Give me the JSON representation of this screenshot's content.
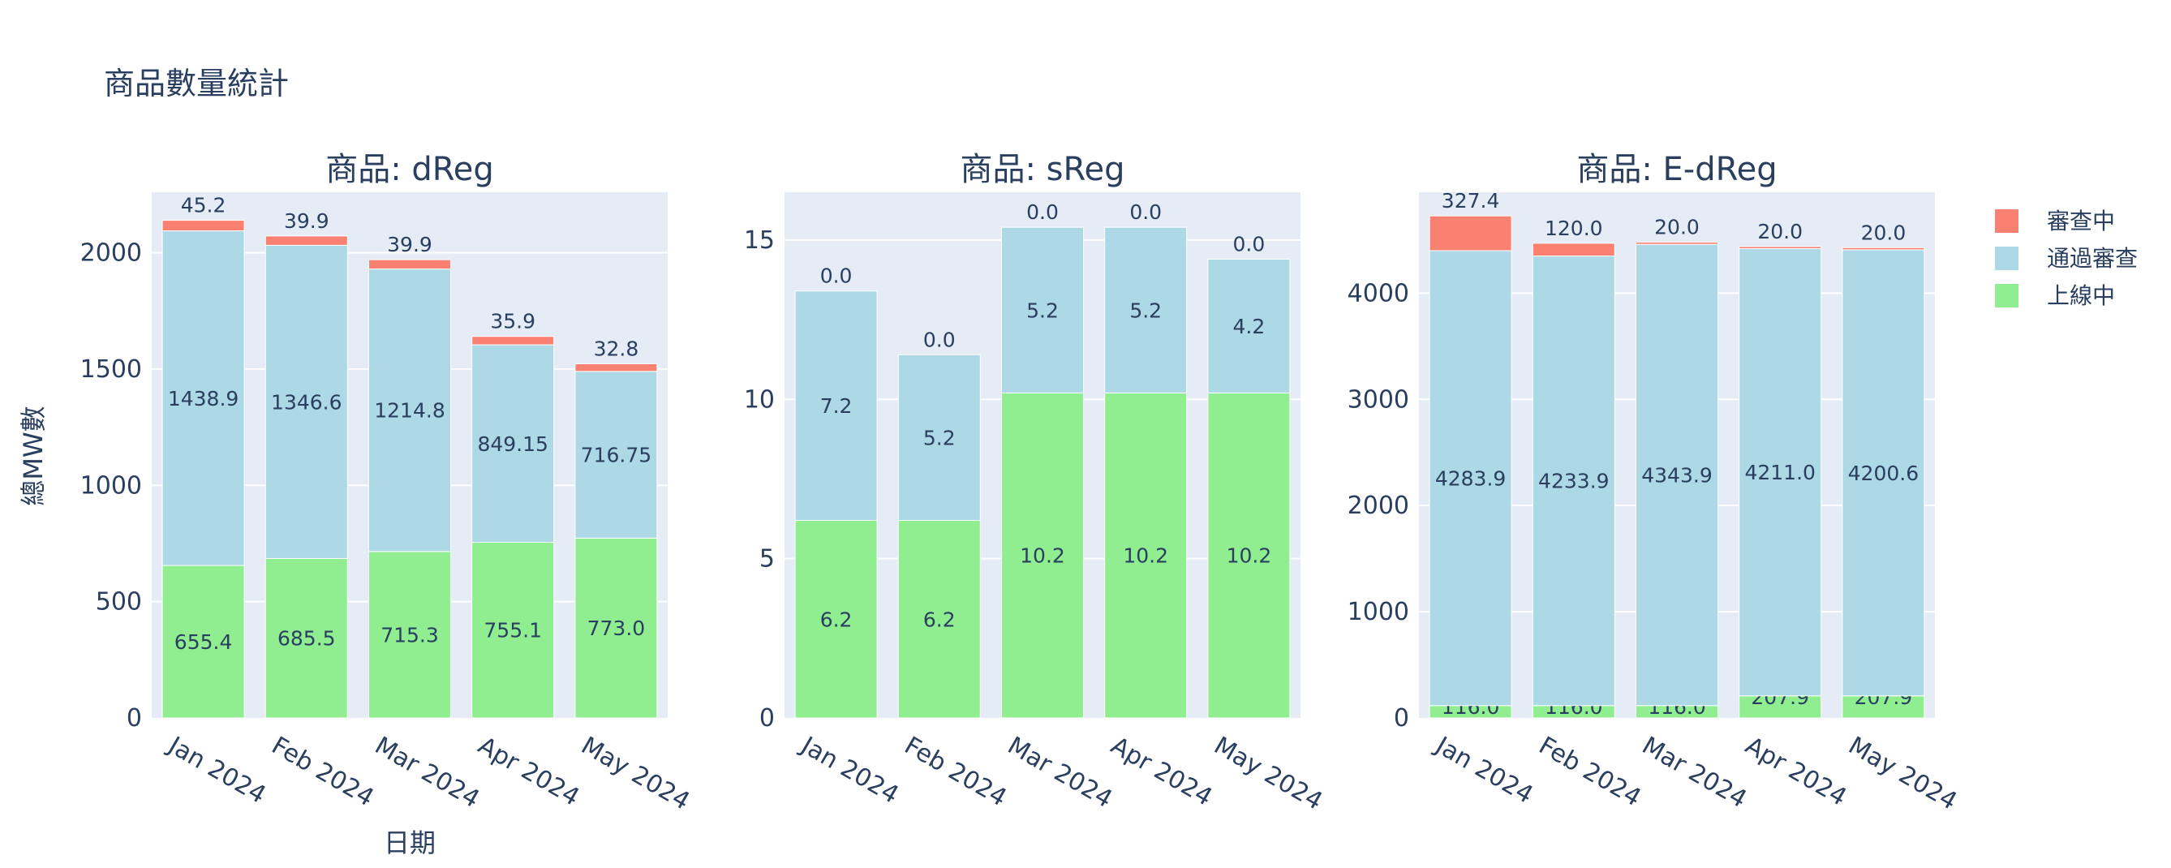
{
  "chart_data": {
    "type": "bar",
    "stacked": true,
    "title": "商品數量統計",
    "xlabel": "日期",
    "ylabel": "總MW數",
    "categories": [
      "Jan 2024",
      "Feb 2024",
      "Mar 2024",
      "Apr 2024",
      "May 2024"
    ],
    "legend": {
      "placement": "right",
      "items": [
        {
          "name": "審查中",
          "color": "#fa8072"
        },
        {
          "name": "通過審查",
          "color": "#add8e6"
        },
        {
          "name": "上線中",
          "color": "#90ee90"
        }
      ]
    },
    "panels": [
      {
        "title": "商品: dReg",
        "ylim": [
          0,
          2260
        ],
        "yticks": [
          0,
          500,
          1000,
          1500,
          2000
        ],
        "series": [
          {
            "name": "上線中",
            "color": "#90ee90",
            "values": [
              655.4,
              685.5,
              715.3,
              755.1,
              773.0
            ],
            "labels": [
              "655.4",
              "685.5",
              "715.3",
              "755.1",
              "773.0"
            ]
          },
          {
            "name": "通過審查",
            "color": "#add8e6",
            "values": [
              1438.9,
              1346.6,
              1214.8,
              849.15,
              716.75
            ],
            "labels": [
              "1438.9",
              "1346.6",
              "1214.8",
              "849.15",
              "716.75"
            ]
          },
          {
            "name": "審查中",
            "color": "#fa8072",
            "values": [
              45.2,
              39.9,
              39.9,
              35.9,
              32.8
            ],
            "labels": [
              "45.2",
              "39.9",
              "39.9",
              "35.9",
              "32.8"
            ]
          }
        ]
      },
      {
        "title": "商品: sReg",
        "ylim": [
          0,
          16.5
        ],
        "yticks": [
          0,
          5,
          10,
          15
        ],
        "series": [
          {
            "name": "上線中",
            "color": "#90ee90",
            "values": [
              6.2,
              6.2,
              10.2,
              10.2,
              10.2
            ],
            "labels": [
              "6.2",
              "6.2",
              "10.2",
              "10.2",
              "10.2"
            ]
          },
          {
            "name": "通過審查",
            "color": "#add8e6",
            "values": [
              7.2,
              5.2,
              5.2,
              5.2,
              4.2
            ],
            "labels": [
              "7.2",
              "5.2",
              "5.2",
              "5.2",
              "4.2"
            ]
          },
          {
            "name": "審查中",
            "color": "#fa8072",
            "values": [
              0.0,
              0.0,
              0.0,
              0.0,
              0.0
            ],
            "labels": [
              "0.0",
              "0.0",
              "0.0",
              "0.0",
              "0.0"
            ]
          }
        ]
      },
      {
        "title": "商品: E-dReg",
        "ylim": [
          0,
          4950
        ],
        "yticks": [
          0,
          1000,
          2000,
          3000,
          4000
        ],
        "series": [
          {
            "name": "上線中",
            "color": "#90ee90",
            "values": [
              116.0,
              116.0,
              116.0,
              207.9,
              207.9
            ],
            "labels": [
              "116.0",
              "116.0",
              "116.0",
              "207.9",
              "207.9"
            ]
          },
          {
            "name": "通過審查",
            "color": "#add8e6",
            "values": [
              4283.9,
              4233.9,
              4343.9,
              4211.0,
              4200.6
            ],
            "labels": [
              "4283.9",
              "4233.9",
              "4343.9",
              "4211.0",
              "4200.6"
            ]
          },
          {
            "name": "審查中",
            "color": "#fa8072",
            "values": [
              327.4,
              120.0,
              20.0,
              20.0,
              20.0
            ],
            "labels": [
              "327.4",
              "120.0",
              "20.0",
              "20.0",
              "20.0"
            ]
          }
        ]
      }
    ]
  }
}
